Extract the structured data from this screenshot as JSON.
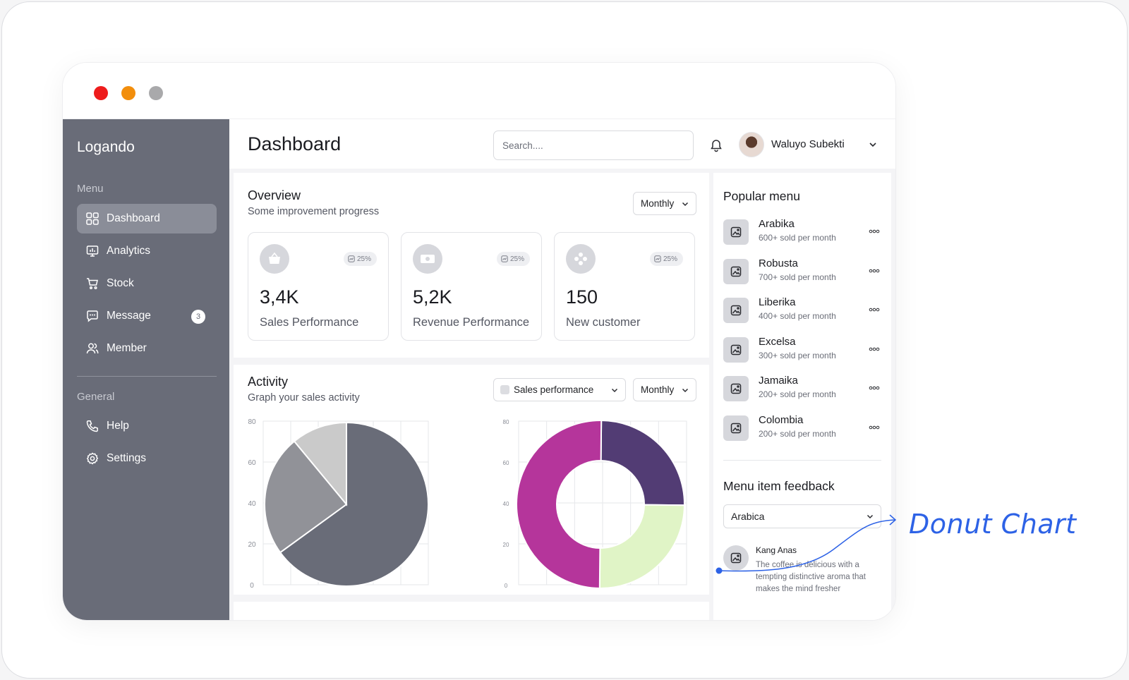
{
  "window_controls": {
    "colors": [
      "#ee1c1c",
      "#f28e0c",
      "#a9a9ab"
    ]
  },
  "sidebar": {
    "logo": "Logando",
    "menu_label": "Menu",
    "general_label": "General",
    "menu_items": [
      {
        "label": "Dashboard",
        "icon": "grid-icon",
        "active": true
      },
      {
        "label": "Analytics",
        "icon": "chart-icon"
      },
      {
        "label": "Stock",
        "icon": "cart-icon"
      },
      {
        "label": "Message",
        "icon": "message-icon",
        "badge": "3"
      },
      {
        "label": "Member",
        "icon": "users-icon"
      }
    ],
    "general_items": [
      {
        "label": "Help",
        "icon": "phone-icon"
      },
      {
        "label": "Settings",
        "icon": "gear-icon"
      }
    ],
    "bg_color": "#696c78"
  },
  "header": {
    "title": "Dashboard",
    "search_placeholder": "Search....",
    "user_name": "Waluyo Subekti"
  },
  "overview": {
    "title": "Overview",
    "subtitle": "Some improvement progress",
    "period": "Monthly",
    "cards": [
      {
        "value": "3,4K",
        "label": "Sales Performance",
        "change": "25%",
        "icon": "basket-icon"
      },
      {
        "value": "5,2K",
        "label": "Revenue Performance",
        "change": "25%",
        "icon": "money-icon"
      },
      {
        "value": "150",
        "label": "New customer",
        "change": "25%",
        "icon": "people-icon"
      }
    ]
  },
  "activity": {
    "title": "Activity",
    "subtitle": "Graph your sales activity",
    "metric": "Sales performance",
    "period": "Monthly"
  },
  "chart_data": [
    {
      "type": "pie",
      "y_ticks": [
        "80",
        "60",
        "40",
        "20",
        "0"
      ],
      "values": [
        65,
        24,
        11
      ],
      "colors": [
        "#696c78",
        "#919298",
        "#cacaca"
      ]
    },
    {
      "type": "pie",
      "donut": true,
      "y_ticks": [
        "80",
        "60",
        "40",
        "20",
        "0"
      ],
      "values": [
        25,
        25,
        50
      ],
      "colors": [
        "#523c74",
        "#e0f4c6",
        "#b5359b"
      ]
    }
  ],
  "popular_menu": {
    "title": "Popular menu",
    "items": [
      {
        "name": "Arabika",
        "sub": "600+ sold per month"
      },
      {
        "name": "Robusta",
        "sub": "700+ sold per month"
      },
      {
        "name": "Liberika",
        "sub": "400+ sold per month"
      },
      {
        "name": "Excelsa",
        "sub": "300+ sold per month"
      },
      {
        "name": "Jamaika",
        "sub": "200+ sold per month"
      },
      {
        "name": "Colombia",
        "sub": "200+ sold per month"
      }
    ]
  },
  "feedback": {
    "title": "Menu item feedback",
    "selected": "Arabica",
    "author": "Kang Anas",
    "text": "The coffee is delicious with a tempting distinctive aroma that makes the mind fresher"
  },
  "annotation": {
    "label": "Donut Chart",
    "color": "#2d62e6"
  }
}
